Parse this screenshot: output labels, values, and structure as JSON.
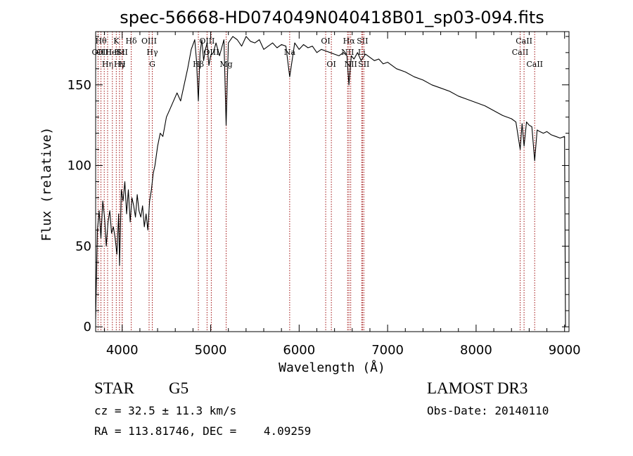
{
  "chart_data": {
    "type": "line",
    "title": "spec-56668-HD074049N040418B01_sp03-094.fits",
    "xlabel": "Wavelength (Å)",
    "ylabel": "Flux (relative)",
    "xlim": [
      3700,
      9050
    ],
    "ylim": [
      -3,
      183
    ],
    "xticks": [
      4000,
      5000,
      6000,
      7000,
      8000,
      9000
    ],
    "yticks": [
      0,
      50,
      100,
      150
    ],
    "series": [
      {
        "name": "flux",
        "x": [
          3700,
          3720,
          3740,
          3760,
          3780,
          3800,
          3820,
          3840,
          3860,
          3880,
          3900,
          3920,
          3940,
          3960,
          3970,
          3990,
          4010,
          4030,
          4050,
          4070,
          4090,
          4110,
          4130,
          4150,
          4170,
          4190,
          4210,
          4230,
          4250,
          4270,
          4290,
          4310,
          4330,
          4350,
          4370,
          4400,
          4430,
          4460,
          4500,
          4540,
          4580,
          4620,
          4660,
          4700,
          4740,
          4780,
          4800,
          4820,
          4840,
          4861,
          4880,
          4900,
          4920,
          4940,
          4960,
          4980,
          5000,
          5030,
          5060,
          5100,
          5150,
          5175,
          5200,
          5250,
          5300,
          5350,
          5400,
          5450,
          5500,
          5550,
          5600,
          5650,
          5700,
          5750,
          5800,
          5850,
          5893,
          5950,
          6000,
          6050,
          6100,
          6150,
          6200,
          6250,
          6300,
          6350,
          6400,
          6450,
          6500,
          6540,
          6563,
          6590,
          6620,
          6660,
          6700,
          6750,
          6800,
          6850,
          6900,
          6950,
          7000,
          7100,
          7200,
          7300,
          7400,
          7500,
          7600,
          7700,
          7800,
          7900,
          8000,
          8100,
          8200,
          8300,
          8400,
          8450,
          8498,
          8520,
          8542,
          8570,
          8600,
          8630,
          8662,
          8690,
          8720,
          8760,
          8800,
          8850,
          8900,
          8950,
          9000,
          9010
        ],
        "values": [
          5,
          60,
          72,
          55,
          78,
          68,
          50,
          65,
          72,
          58,
          62,
          55,
          45,
          70,
          38,
          85,
          78,
          90,
          70,
          85,
          65,
          80,
          75,
          68,
          82,
          72,
          68,
          75,
          62,
          70,
          60,
          78,
          85,
          95,
          100,
          112,
          120,
          118,
          130,
          135,
          140,
          145,
          140,
          150,
          160,
          172,
          175,
          178,
          165,
          140,
          170,
          178,
          165,
          172,
          176,
          162,
          168,
          170,
          176,
          168,
          178,
          125,
          176,
          180,
          178,
          174,
          180,
          177,
          176,
          178,
          172,
          174,
          176,
          173,
          175,
          174,
          155,
          176,
          172,
          175,
          173,
          174,
          170,
          172,
          171,
          170,
          169,
          168,
          170,
          168,
          150,
          168,
          166,
          170,
          165,
          169,
          167,
          165,
          166,
          163,
          164,
          160,
          158,
          155,
          153,
          150,
          148,
          146,
          143,
          141,
          139,
          137,
          134,
          131,
          129,
          127,
          110,
          126,
          112,
          127,
          125,
          124,
          103,
          122,
          121,
          120,
          121,
          119,
          118,
          117,
          118,
          0
        ]
      }
    ],
    "lines": [
      {
        "w": 3727,
        "labels": [
          "OII"
        ],
        "row": 2
      },
      {
        "w": 3760,
        "labels": [
          "Hθ"
        ],
        "row": 1
      },
      {
        "w": 3797,
        "labels": [
          "OIII"
        ],
        "row": 2
      },
      {
        "w": 3835,
        "labels": [
          "Hη"
        ],
        "row": 3
      },
      {
        "w": 3889,
        "labels": [
          "HeI"
        ],
        "row": 2
      },
      {
        "w": 3933,
        "labels": [
          "K"
        ],
        "row": 1
      },
      {
        "w": 3970,
        "labels": [
          "Hε"
        ],
        "row": 2
      },
      {
        "w": 3970,
        "labels": [
          "Hγ"
        ],
        "row": 3
      },
      {
        "w": 4000,
        "labels": [
          "SII"
        ],
        "row": 2
      },
      {
        "w": 4000,
        "labels": [
          "H"
        ],
        "row": 3
      },
      {
        "w": 4102,
        "labels": [
          "Hδ"
        ],
        "row": 1
      },
      {
        "w": 4304,
        "labels": [
          "OIII"
        ],
        "row": 1
      },
      {
        "w": 4340,
        "labels": [
          "Hγ"
        ],
        "row": 2
      },
      {
        "w": 4340,
        "labels": [
          "G"
        ],
        "row": 3
      },
      {
        "w": 4861,
        "labels": [
          "Hβ"
        ],
        "row": 3
      },
      {
        "w": 4959,
        "labels": [
          "OIII"
        ],
        "row": 1
      },
      {
        "w": 5007,
        "labels": [
          "OIII"
        ],
        "row": 2
      },
      {
        "w": 5175,
        "labels": [
          "Mg"
        ],
        "row": 3
      },
      {
        "w": 5893,
        "labels": [
          "Na"
        ],
        "row": 2
      },
      {
        "w": 6300,
        "labels": [
          "OI"
        ],
        "row": 1
      },
      {
        "w": 6364,
        "labels": [
          "OI"
        ],
        "row": 3
      },
      {
        "w": 6548,
        "labels": [
          "NII"
        ],
        "row": 2
      },
      {
        "w": 6563,
        "labels": [
          "Hα"
        ],
        "row": 1
      },
      {
        "w": 6583,
        "labels": [
          "NII"
        ],
        "row": 3
      },
      {
        "w": 6716,
        "labels": [
          "SII"
        ],
        "row": 1
      },
      {
        "w": 6707,
        "labels": [
          "Li"
        ],
        "row": 2
      },
      {
        "w": 6731,
        "labels": [
          "SII"
        ],
        "row": 3
      },
      {
        "w": 8498,
        "labels": [
          "CaII"
        ],
        "row": 2
      },
      {
        "w": 8542,
        "labels": [
          "CaII"
        ],
        "row": 1
      },
      {
        "w": 8662,
        "labels": [
          "CaII"
        ],
        "row": 3
      }
    ]
  },
  "info": {
    "object_class": "STAR",
    "subclass": "G5",
    "survey": "LAMOST DR3",
    "cz": "cz = 32.5 ± 11.3 km/s",
    "obs_date": "Obs-Date: 20140110",
    "coords": "RA = 113.81746, DEC =    4.09259"
  },
  "colors": {
    "line_marker": "#a01010",
    "spectrum": "#000000",
    "axes": "#000000"
  }
}
